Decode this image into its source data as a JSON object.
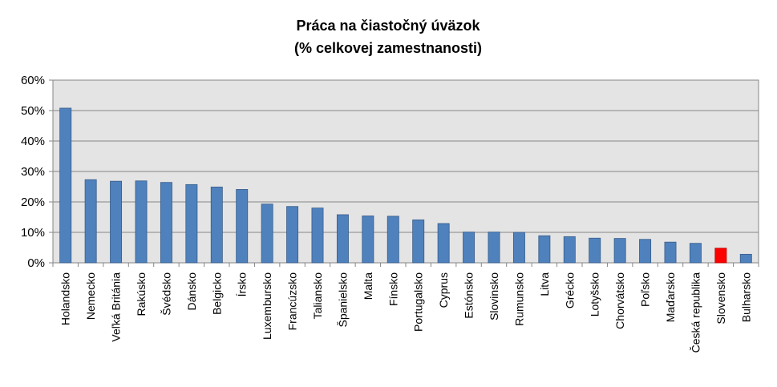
{
  "chart_data": {
    "type": "bar",
    "title_line1": "Práca na čiastočný úväzok",
    "title_line2": "(% celkovej zamestnanosti)",
    "categories": [
      "Holandsko",
      "Nemecko",
      "Veľká Británia",
      "Rakúsko",
      "Švédsko",
      "Dánsko",
      "Belgicko",
      "Írsko",
      "Luxembursko",
      "Francúzsko",
      "Taliansko",
      "Španielsko",
      "Malta",
      "Fínsko",
      "Portugalsko",
      "Cyprus",
      "Estónsko",
      "Slovinsko",
      "Rumunsko",
      "Litva",
      "Grécko",
      "Lotyšsko",
      "Chorvátsko",
      "Poľsko",
      "Maďarsko",
      "Česká republika",
      "Slovensko",
      "Bulharsko"
    ],
    "values": [
      50.8,
      27.3,
      26.8,
      26.9,
      26.4,
      25.7,
      24.9,
      24.1,
      19.3,
      18.5,
      18.0,
      15.8,
      15.4,
      15.3,
      14.1,
      12.9,
      10.1,
      10.1,
      10.0,
      8.9,
      8.6,
      8.1,
      8.0,
      7.7,
      6.8,
      6.4,
      4.8,
      2.8
    ],
    "ylim": [
      0,
      60
    ],
    "yticks": [
      "0%",
      "10%",
      "20%",
      "30%",
      "40%",
      "50%",
      "60%"
    ],
    "grid": true,
    "colors": {
      "bar": "#4f81bd",
      "bar_edge": "#385d8a",
      "highlight": "#ff0000",
      "highlight_edge": "#c00000",
      "plot_bg": "#e4e4e4",
      "grid": "#868686"
    },
    "highlight_category": "Slovensko"
  }
}
